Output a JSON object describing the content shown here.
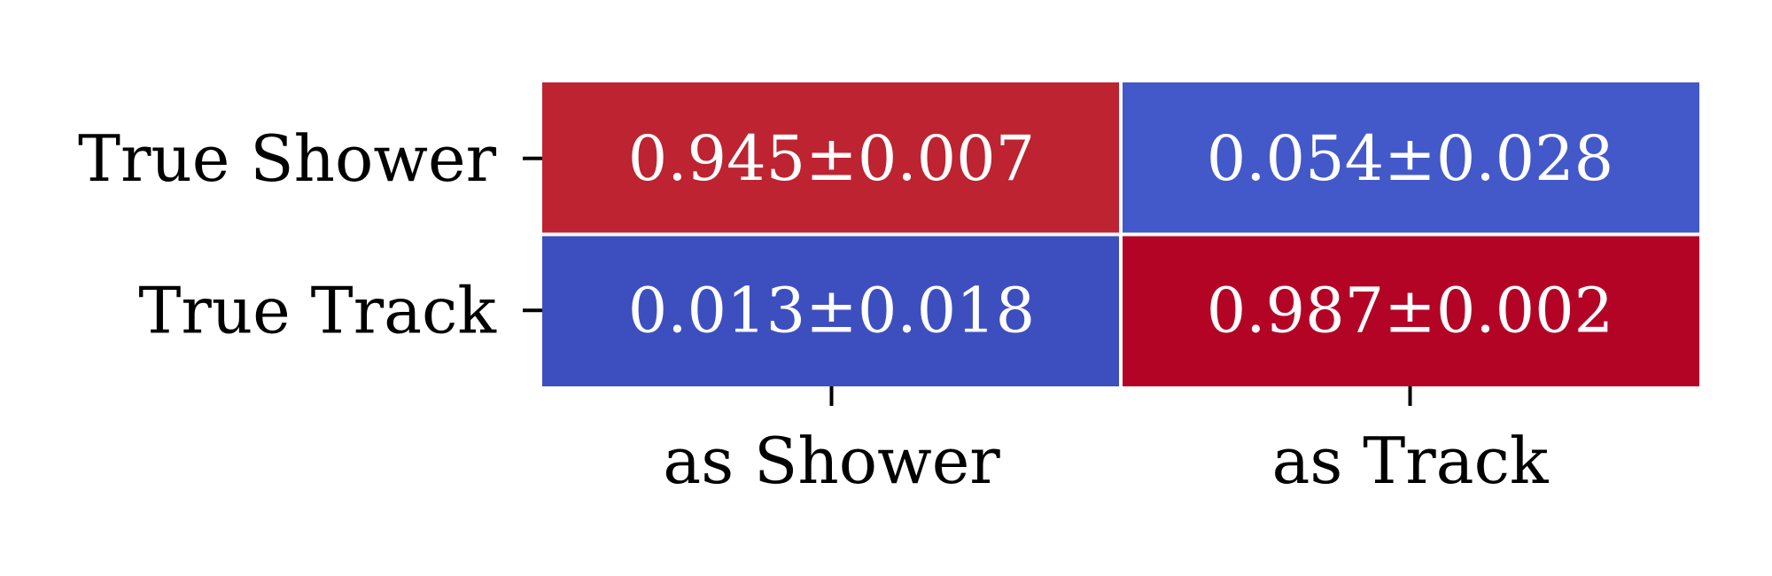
{
  "chart_data": {
    "type": "heatmap",
    "title": "",
    "xlabel": "",
    "ylabel": "",
    "x_categories": [
      "as Shower",
      "as Track"
    ],
    "y_categories": [
      "True Shower",
      "True Track"
    ],
    "values": [
      [
        0.945,
        0.054
      ],
      [
        0.013,
        0.987
      ]
    ],
    "uncertainties": [
      [
        0.007,
        0.028
      ],
      [
        0.018,
        0.002
      ]
    ],
    "cell_labels": [
      [
        "0.945±0.007",
        "0.054±0.028"
      ],
      [
        "0.013±0.018",
        "0.987±0.002"
      ]
    ],
    "colormap": "coolwarm",
    "cell_colors": [
      [
        "#bd2330",
        "#4358c9"
      ],
      [
        "#3d4fbf",
        "#b40426"
      ]
    ],
    "cell_text_color": "#ffffff",
    "grid_color": "#ffffff",
    "colorbar": false,
    "legend": "none"
  }
}
